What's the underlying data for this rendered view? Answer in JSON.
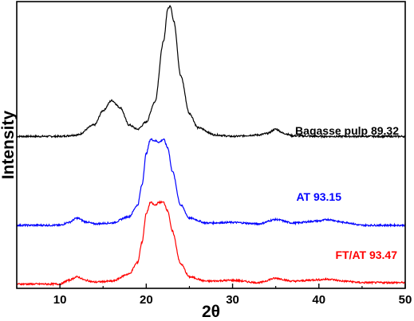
{
  "chart_data": {
    "type": "line",
    "xlabel": "2θ",
    "ylabel": "Intensity",
    "xlim": [
      5,
      50
    ],
    "ylim": [
      0,
      1
    ],
    "xticks": [
      10,
      20,
      30,
      40,
      50
    ],
    "yticks_shown": false,
    "grid": false,
    "legend": "none",
    "series": [
      {
        "name": "Bagasse pulp 89.32",
        "color": "#000000",
        "x": [
          5,
          10,
          12,
          14,
          15,
          16,
          17,
          18,
          19,
          20,
          21,
          22,
          22.5,
          22.8,
          23.2,
          24,
          25,
          26,
          28,
          30,
          33,
          34,
          35,
          36,
          37,
          40,
          45,
          50
        ],
        "y": [
          0.53,
          0.53,
          0.535,
          0.57,
          0.62,
          0.655,
          0.63,
          0.57,
          0.555,
          0.58,
          0.65,
          0.86,
          0.975,
          0.985,
          0.93,
          0.74,
          0.61,
          0.56,
          0.535,
          0.53,
          0.535,
          0.54,
          0.555,
          0.54,
          0.532,
          0.53,
          0.53,
          0.53
        ]
      },
      {
        "name": "AT 93.15",
        "color": "#0000ff",
        "x": [
          5,
          10,
          11,
          12,
          13,
          14,
          16,
          18,
          19,
          19.5,
          20,
          20.5,
          21,
          21.5,
          22,
          22.5,
          23,
          24,
          25,
          27,
          30,
          33,
          35,
          37,
          40,
          41,
          43,
          45,
          50
        ],
        "y": [
          0.22,
          0.22,
          0.23,
          0.245,
          0.232,
          0.225,
          0.228,
          0.25,
          0.29,
          0.36,
          0.47,
          0.52,
          0.515,
          0.51,
          0.52,
          0.49,
          0.41,
          0.29,
          0.245,
          0.228,
          0.23,
          0.225,
          0.24,
          0.228,
          0.235,
          0.24,
          0.23,
          0.22,
          0.22
        ]
      },
      {
        "name": "FT/AT 93.47",
        "color": "#ff0000",
        "x": [
          5,
          10,
          11,
          12,
          13,
          14,
          16,
          18,
          19,
          19.5,
          20,
          20.5,
          21,
          21.5,
          22,
          22.5,
          23,
          24,
          25,
          27,
          30,
          33,
          35,
          37,
          40,
          41,
          43,
          45,
          50
        ],
        "y": [
          0.015,
          0.015,
          0.028,
          0.04,
          0.028,
          0.022,
          0.025,
          0.05,
          0.09,
          0.16,
          0.26,
          0.3,
          0.29,
          0.3,
          0.3,
          0.27,
          0.2,
          0.085,
          0.04,
          0.025,
          0.028,
          0.02,
          0.035,
          0.025,
          0.03,
          0.032,
          0.025,
          0.02,
          0.02
        ]
      }
    ]
  }
}
